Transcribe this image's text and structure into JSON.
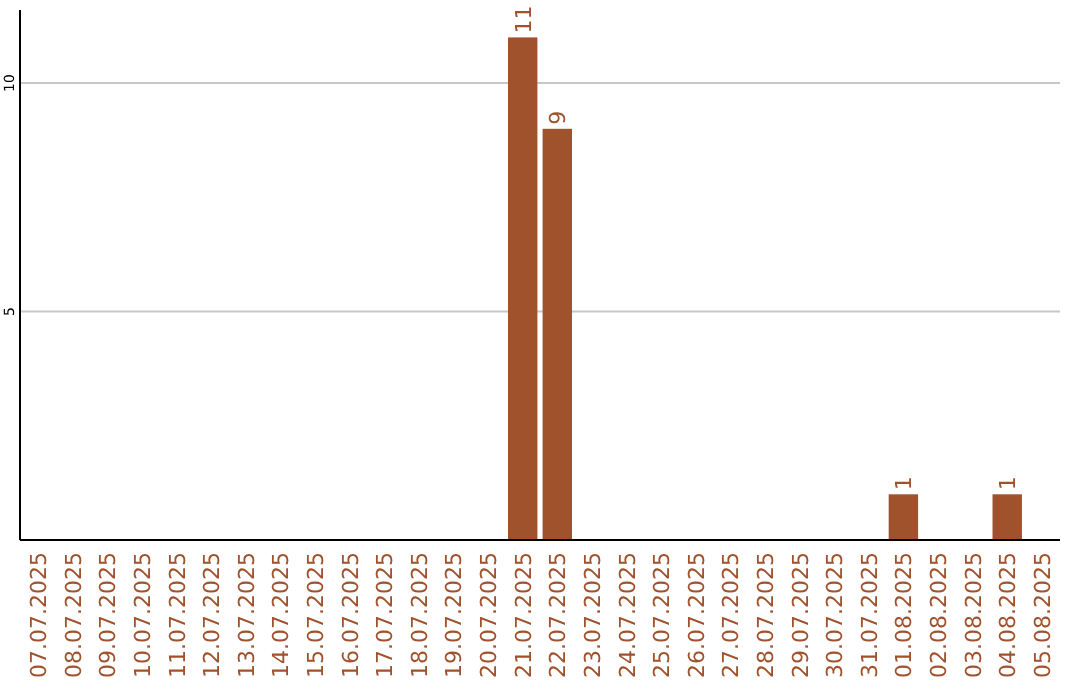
{
  "chart_data": {
    "type": "bar",
    "categories": [
      "07.07.2025",
      "08.07.2025",
      "09.07.2025",
      "10.07.2025",
      "11.07.2025",
      "12.07.2025",
      "13.07.2025",
      "14.07.2025",
      "15.07.2025",
      "16.07.2025",
      "17.07.2025",
      "18.07.2025",
      "19.07.2025",
      "20.07.2025",
      "21.07.2025",
      "22.07.2025",
      "23.07.2025",
      "24.07.2025",
      "25.07.2025",
      "26.07.2025",
      "27.07.2025",
      "28.07.2025",
      "29.07.2025",
      "30.07.2025",
      "31.07.2025",
      "01.08.2025",
      "02.08.2025",
      "03.08.2025",
      "04.08.2025",
      "05.08.2025"
    ],
    "values": [
      0,
      0,
      0,
      0,
      0,
      0,
      0,
      0,
      0,
      0,
      0,
      0,
      0,
      0,
      11,
      9,
      0,
      0,
      0,
      0,
      0,
      0,
      0,
      0,
      0,
      1,
      0,
      0,
      1,
      0
    ],
    "value_labels": [
      null,
      null,
      null,
      null,
      null,
      null,
      null,
      null,
      null,
      null,
      null,
      null,
      null,
      null,
      "11",
      "9",
      null,
      null,
      null,
      null,
      null,
      null,
      null,
      null,
      null,
      "1",
      null,
      null,
      "1",
      null
    ],
    "color": "#a0522d",
    "ylim": [
      0,
      11.6
    ],
    "yticks": [
      5,
      10
    ],
    "grid": "y"
  }
}
